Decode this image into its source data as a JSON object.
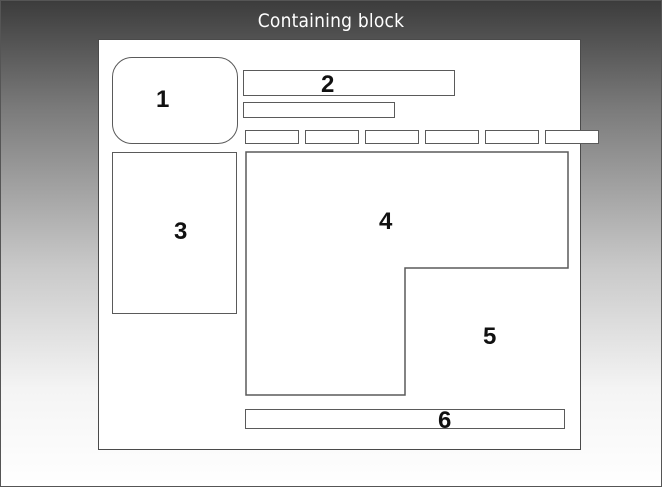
{
  "title": "Containing block",
  "regions": {
    "r1": "1",
    "r2": "2",
    "r3": "3",
    "r4": "4",
    "r5": "5",
    "r6": "6"
  },
  "nav_item_count": 6
}
